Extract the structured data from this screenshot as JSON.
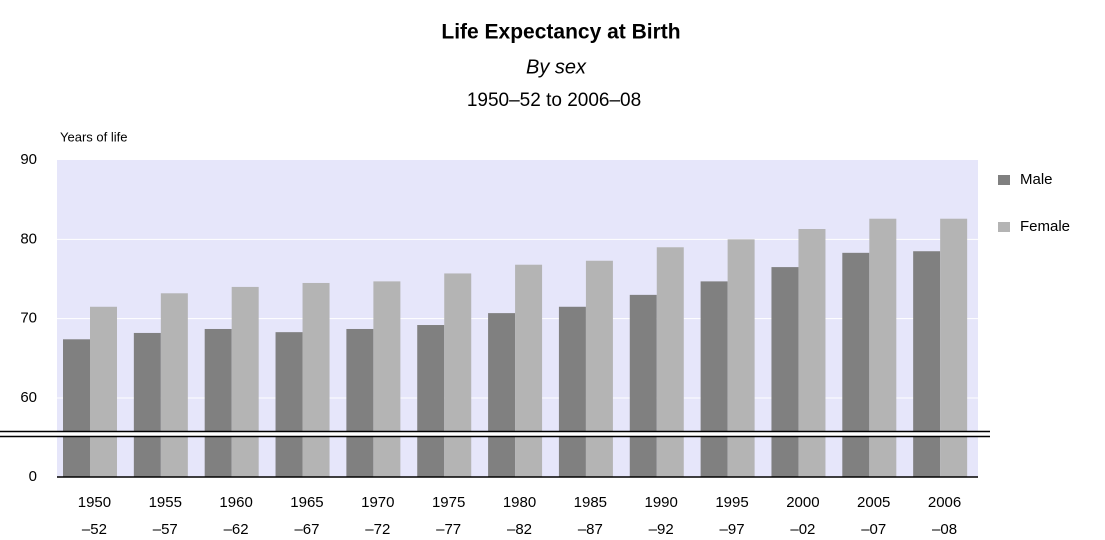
{
  "chart_data": {
    "type": "bar",
    "title": "Life Expectancy at Birth",
    "subtitle": "By sex",
    "period": "1950–52 to 2006–08",
    "y_label": "Years of life",
    "categories": [
      [
        "1950",
        "–52"
      ],
      [
        "1955",
        "–57"
      ],
      [
        "1960",
        "–62"
      ],
      [
        "1965",
        "–67"
      ],
      [
        "1970",
        "–72"
      ],
      [
        "1975",
        "–77"
      ],
      [
        "1980",
        "–82"
      ],
      [
        "1985",
        "–87"
      ],
      [
        "1990",
        "–92"
      ],
      [
        "1995",
        "–97"
      ],
      [
        "2000",
        "–02"
      ],
      [
        "2005",
        "–07"
      ],
      [
        "2006",
        "–08"
      ]
    ],
    "series": [
      {
        "name": "Male",
        "color": "#808080",
        "values": [
          67.4,
          68.2,
          68.7,
          68.3,
          68.7,
          69.2,
          70.7,
          71.5,
          73.0,
          74.7,
          76.5,
          78.3,
          78.5
        ]
      },
      {
        "name": "Female",
        "color": "#b4b4b4",
        "values": [
          71.5,
          73.2,
          74.0,
          74.5,
          74.7,
          75.7,
          76.8,
          77.3,
          79.0,
          80.0,
          81.3,
          82.6,
          82.6
        ]
      }
    ],
    "ylim": [
      0,
      90
    ],
    "yticks": [
      0,
      60,
      70,
      80,
      90
    ],
    "axis_break": true,
    "grid": true,
    "plot_background": "#e6e6fa",
    "legend": "right"
  }
}
